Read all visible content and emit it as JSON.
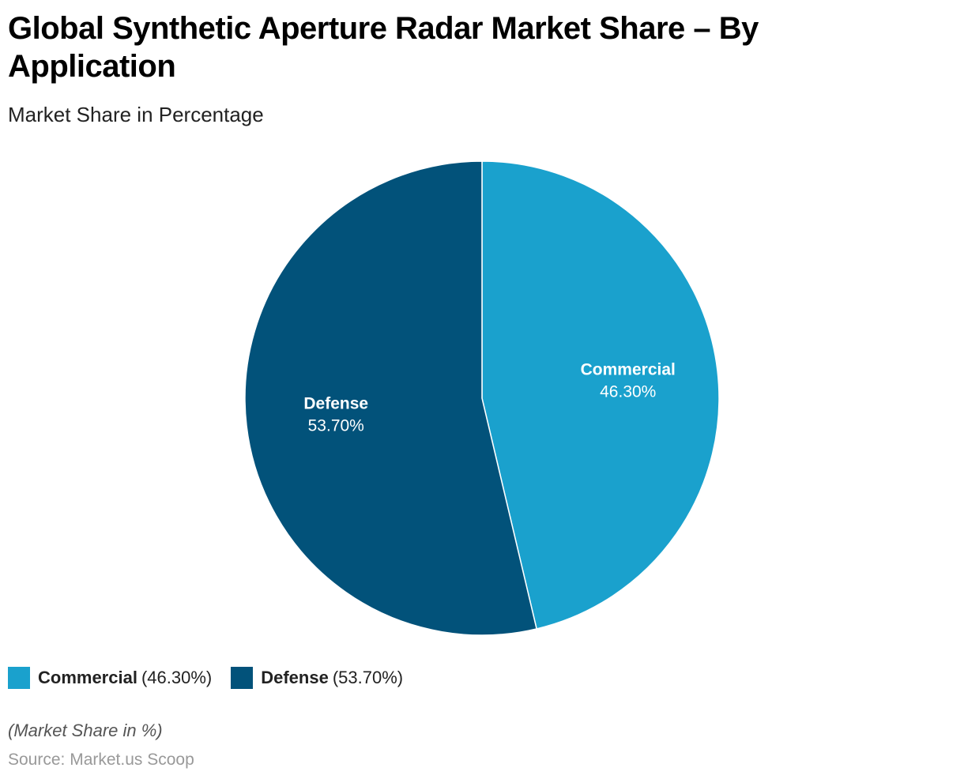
{
  "title": "Global Synthetic Aperture Radar Market Share – By Application",
  "subtitle": "Market Share in Percentage",
  "note": "(Market Share in %)",
  "source": "Source: Market.us Scoop",
  "chart_data": {
    "type": "pie",
    "title": "Global Synthetic Aperture Radar Market Share – By Application",
    "subtitle": "Market Share in Percentage",
    "legend_position": "bottom-left",
    "slices": [
      {
        "label": "Commercial",
        "value": 46.3,
        "display": "46.30%",
        "legend_value": "(46.30%)",
        "color": "#1aa1cd"
      },
      {
        "label": "Defense",
        "value": 53.7,
        "display": "53.70%",
        "legend_value": "(53.70%)",
        "color": "#02527a"
      }
    ]
  }
}
